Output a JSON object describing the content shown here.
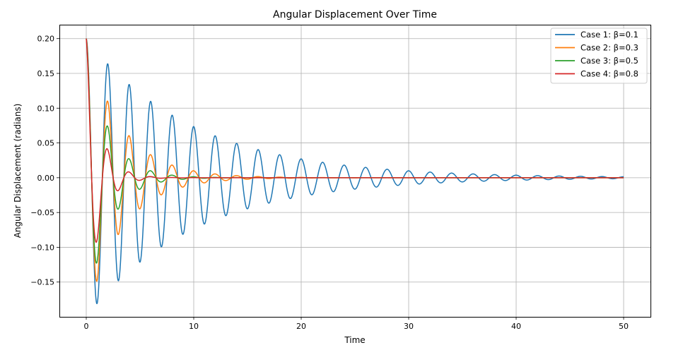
{
  "chart_data": {
    "type": "line",
    "title": "Angular Displacement Over Time",
    "xlabel": "Time",
    "ylabel": "Angular Displacement (radians)",
    "xlim": [
      -2.5,
      52.5
    ],
    "ylim": [
      -0.2,
      0.22
    ],
    "xticks": [
      0,
      10,
      20,
      30,
      40,
      50
    ],
    "yticks": [
      0.2,
      0.15,
      0.1,
      0.05,
      0.0,
      -0.05,
      -0.1,
      -0.15
    ],
    "xtick_labels": [
      "0",
      "10",
      "20",
      "30",
      "40",
      "50"
    ],
    "ytick_labels": [
      "0.20",
      "0.15",
      "0.10",
      "0.05",
      "0.00",
      "−0.05",
      "−0.10",
      "−0.15"
    ],
    "grid": true,
    "legend_position": "top-right",
    "model": {
      "initial_value": 0.2,
      "period": 2.0,
      "t_start": 0,
      "t_end": 50
    },
    "series": [
      {
        "name": "Case 1: β=0.1",
        "color": "#1f77b4",
        "damping": 0.1
      },
      {
        "name": "Case 2: β=0.3",
        "color": "#ff7f0e",
        "damping": 0.3
      },
      {
        "name": "Case 3: β=0.5",
        "color": "#2ca02c",
        "damping": 0.5
      },
      {
        "name": "Case 4: β=0.8",
        "color": "#d62728",
        "damping": 0.8
      }
    ]
  }
}
